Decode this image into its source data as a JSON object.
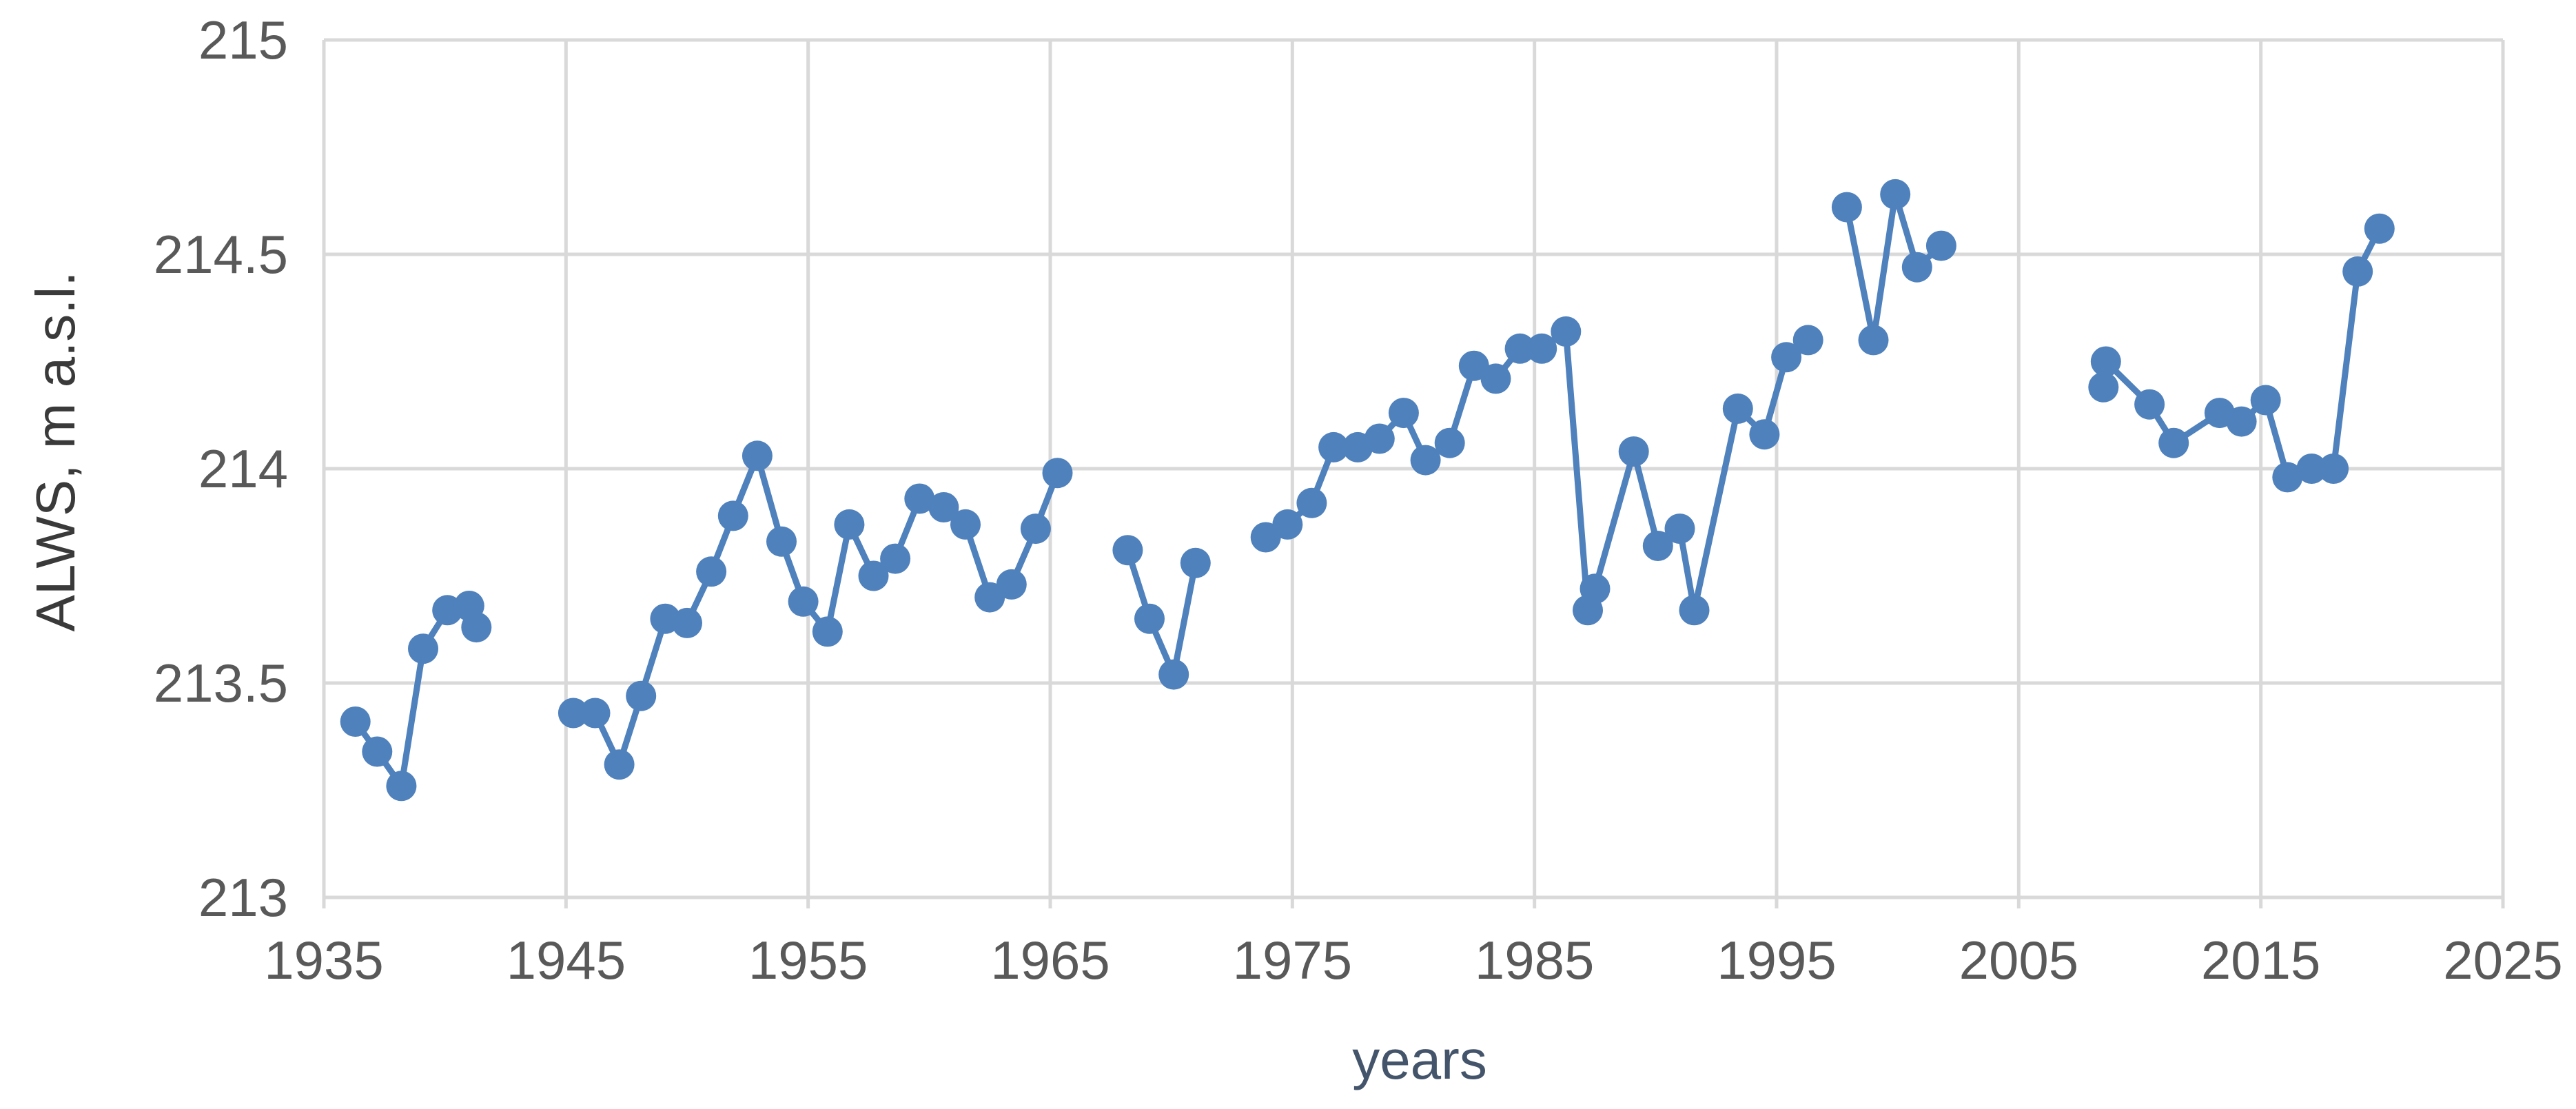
{
  "chart_data": {
    "type": "line",
    "title": "",
    "xlabel": "years",
    "ylabel": "ALWS, m a.s.l.",
    "xlim": [
      1935,
      2025
    ],
    "ylim": [
      213,
      215
    ],
    "x_ticks": [
      1935,
      1945,
      1955,
      1965,
      1975,
      1985,
      1995,
      2005,
      2015,
      2025
    ],
    "y_ticks": [
      213,
      213.5,
      214,
      214.5,
      215
    ],
    "x_tick_labels": [
      "1935",
      "1945",
      "1955",
      "1965",
      "1975",
      "1985",
      "1995",
      "2005",
      "2015",
      "2025"
    ],
    "y_tick_labels": [
      "213",
      "213.5",
      "214",
      "214.5",
      "215"
    ],
    "grid": true,
    "legend": "none",
    "colors": {
      "series": "#4f81bd",
      "grid": "#d9d9d9",
      "tick_text": "#595959",
      "xlabel_text": "#44546a",
      "ylabel_text": "#3a3a3a"
    },
    "series": [
      {
        "points": [
          [
            1936.3,
            213.41
          ],
          [
            1937.2,
            213.34
          ],
          [
            1938.2,
            213.26
          ],
          [
            1939.1,
            213.58
          ],
          [
            1940.1,
            213.67
          ],
          [
            1941.0,
            213.68
          ],
          [
            1941.3,
            213.63
          ],
          null,
          [
            1945.3,
            213.43
          ],
          [
            1946.2,
            213.43
          ],
          [
            1947.2,
            213.31
          ],
          [
            1948.1,
            213.47
          ],
          [
            1949.1,
            213.65
          ],
          [
            1950.0,
            213.64
          ],
          [
            1951.0,
            213.76
          ],
          [
            1951.9,
            213.89
          ],
          [
            1952.9,
            214.03
          ],
          [
            1953.9,
            213.83
          ],
          [
            1954.8,
            213.69
          ],
          [
            1955.8,
            213.62
          ],
          [
            1956.7,
            213.87
          ],
          [
            1957.7,
            213.75
          ],
          [
            1958.6,
            213.79
          ],
          [
            1959.6,
            213.93
          ],
          [
            1960.6,
            213.91
          ],
          [
            1961.5,
            213.87
          ],
          [
            1962.5,
            213.7
          ],
          [
            1963.4,
            213.73
          ],
          [
            1964.4,
            213.86
          ],
          [
            1965.3,
            213.99
          ],
          null,
          [
            1968.2,
            213.81
          ],
          [
            1969.1,
            213.65
          ],
          [
            1970.1,
            213.52
          ],
          [
            1971.0,
            213.78
          ],
          null,
          [
            1973.9,
            213.84
          ],
          [
            1974.8,
            213.87
          ],
          [
            1975.8,
            213.92
          ],
          [
            1976.7,
            214.05
          ],
          [
            1977.7,
            214.05
          ],
          [
            1978.6,
            214.07
          ],
          [
            1979.6,
            214.13
          ],
          [
            1980.5,
            214.02
          ],
          [
            1981.5,
            214.06
          ],
          [
            1982.5,
            214.24
          ],
          [
            1983.4,
            214.21
          ],
          [
            1984.4,
            214.28
          ],
          [
            1985.3,
            214.28
          ],
          [
            1986.3,
            214.32
          ],
          [
            1987.2,
            213.67
          ],
          [
            1987.5,
            213.72
          ],
          [
            1989.1,
            214.04
          ],
          [
            1990.1,
            213.82
          ],
          [
            1991.0,
            213.86
          ],
          [
            1991.6,
            213.67
          ],
          [
            1993.4,
            214.14
          ],
          [
            1994.5,
            214.08
          ],
          [
            1995.4,
            214.26
          ],
          [
            1996.3,
            214.3
          ],
          null,
          [
            1997.9,
            214.61
          ],
          [
            1999.0,
            214.3
          ],
          [
            1999.9,
            214.64
          ],
          [
            2000.8,
            214.47
          ],
          [
            2001.8,
            214.52
          ],
          null,
          [
            2008.5,
            214.19
          ],
          [
            2008.6,
            214.25
          ],
          [
            2010.4,
            214.15
          ],
          [
            2011.4,
            214.06
          ],
          [
            2013.3,
            214.13
          ],
          [
            2014.2,
            214.11
          ],
          [
            2015.2,
            214.16
          ],
          [
            2016.1,
            213.98
          ],
          [
            2017.1,
            214.0
          ],
          [
            2018.0,
            214.0
          ],
          [
            2019.0,
            214.46
          ],
          [
            2019.9,
            214.56
          ]
        ]
      }
    ]
  }
}
